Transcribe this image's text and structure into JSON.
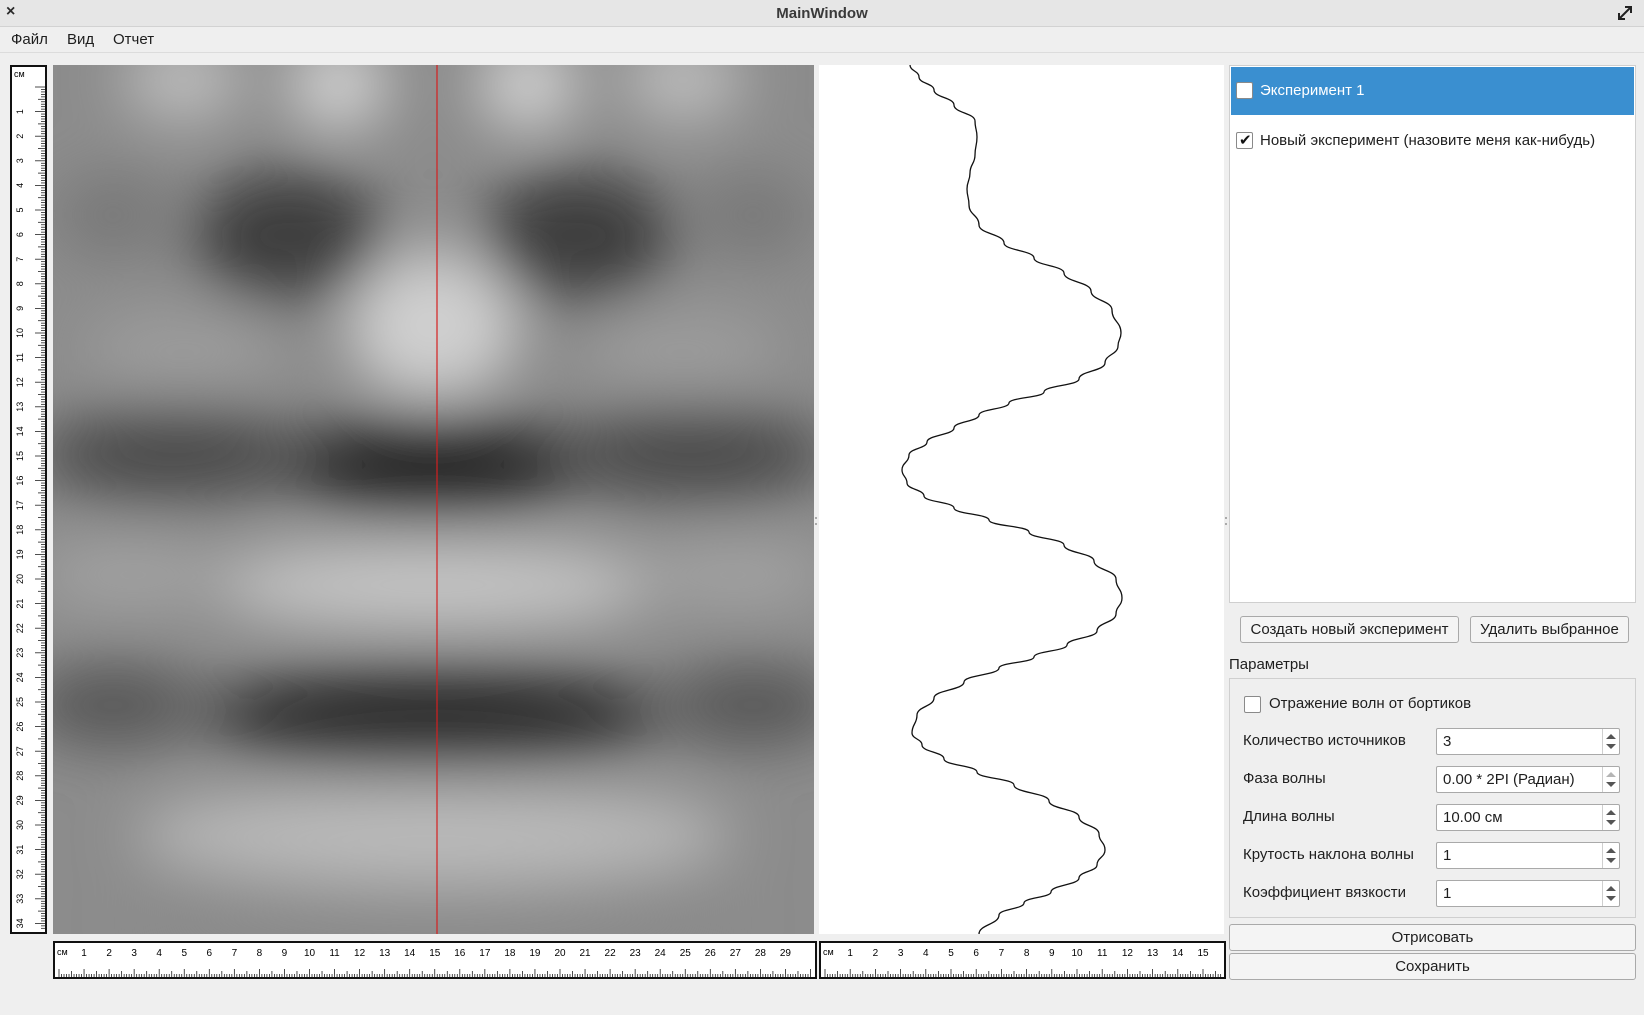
{
  "window": {
    "title": "MainWindow",
    "close_glyph": "×",
    "maximize_icon": "maximize-icon"
  },
  "menu": {
    "items": [
      "Файл",
      "Вид",
      "Отчет"
    ]
  },
  "vertical_ruler": {
    "unit": "см",
    "ticks": [
      "1",
      "2",
      "3",
      "4",
      "5",
      "6",
      "7",
      "8",
      "9",
      "10",
      "11",
      "12",
      "13",
      "14",
      "15",
      "16",
      "17",
      "18",
      "19",
      "20",
      "21",
      "22",
      "23",
      "24",
      "25",
      "26",
      "27",
      "28",
      "29",
      "30",
      "31",
      "32",
      "33",
      "34"
    ]
  },
  "horizontal_ruler_field": {
    "unit": "см",
    "ticks": [
      "1",
      "2",
      "3",
      "4",
      "5",
      "6",
      "7",
      "8",
      "9",
      "10",
      "11",
      "12",
      "13",
      "14",
      "15",
      "16",
      "17",
      "18",
      "19",
      "20",
      "21",
      "22",
      "23",
      "24",
      "25",
      "26",
      "27",
      "28",
      "29"
    ]
  },
  "horizontal_ruler_plot": {
    "unit": "см",
    "ticks": [
      "1",
      "2",
      "3",
      "4",
      "5",
      "6",
      "7",
      "8",
      "9",
      "10",
      "11",
      "12",
      "13",
      "14",
      "15"
    ]
  },
  "field": {
    "cursor_line_color": "#d42020"
  },
  "experiments": {
    "items": [
      {
        "label": "Эксперимент 1",
        "checked": false,
        "selected": true
      },
      {
        "label": "Новый эксперимент (назовите меня как-нибудь)",
        "checked": true,
        "selected": false
      }
    ],
    "create_button": "Создать новый эксперимент",
    "delete_button": "Удалить выбранное"
  },
  "parameters": {
    "title": "Параметры",
    "reflection_label": "Отражение волн от бортиков",
    "reflection_checked": false,
    "rows": [
      {
        "label": "Количество источников",
        "value": "3"
      },
      {
        "label": "Фаза волны",
        "value": "0.00 * 2PI (Радиан)"
      },
      {
        "label": "Длина волны",
        "value": "10.00 см"
      },
      {
        "label": "Крутость наклона волны",
        "value": "1"
      },
      {
        "label": "Коэффициент вязкости",
        "value": "1"
      }
    ]
  },
  "actions": {
    "draw_button": "Отрисовать",
    "save_button": "Сохранить"
  },
  "colors": {
    "selection": "#3a8fd0",
    "background": "#efefef"
  }
}
